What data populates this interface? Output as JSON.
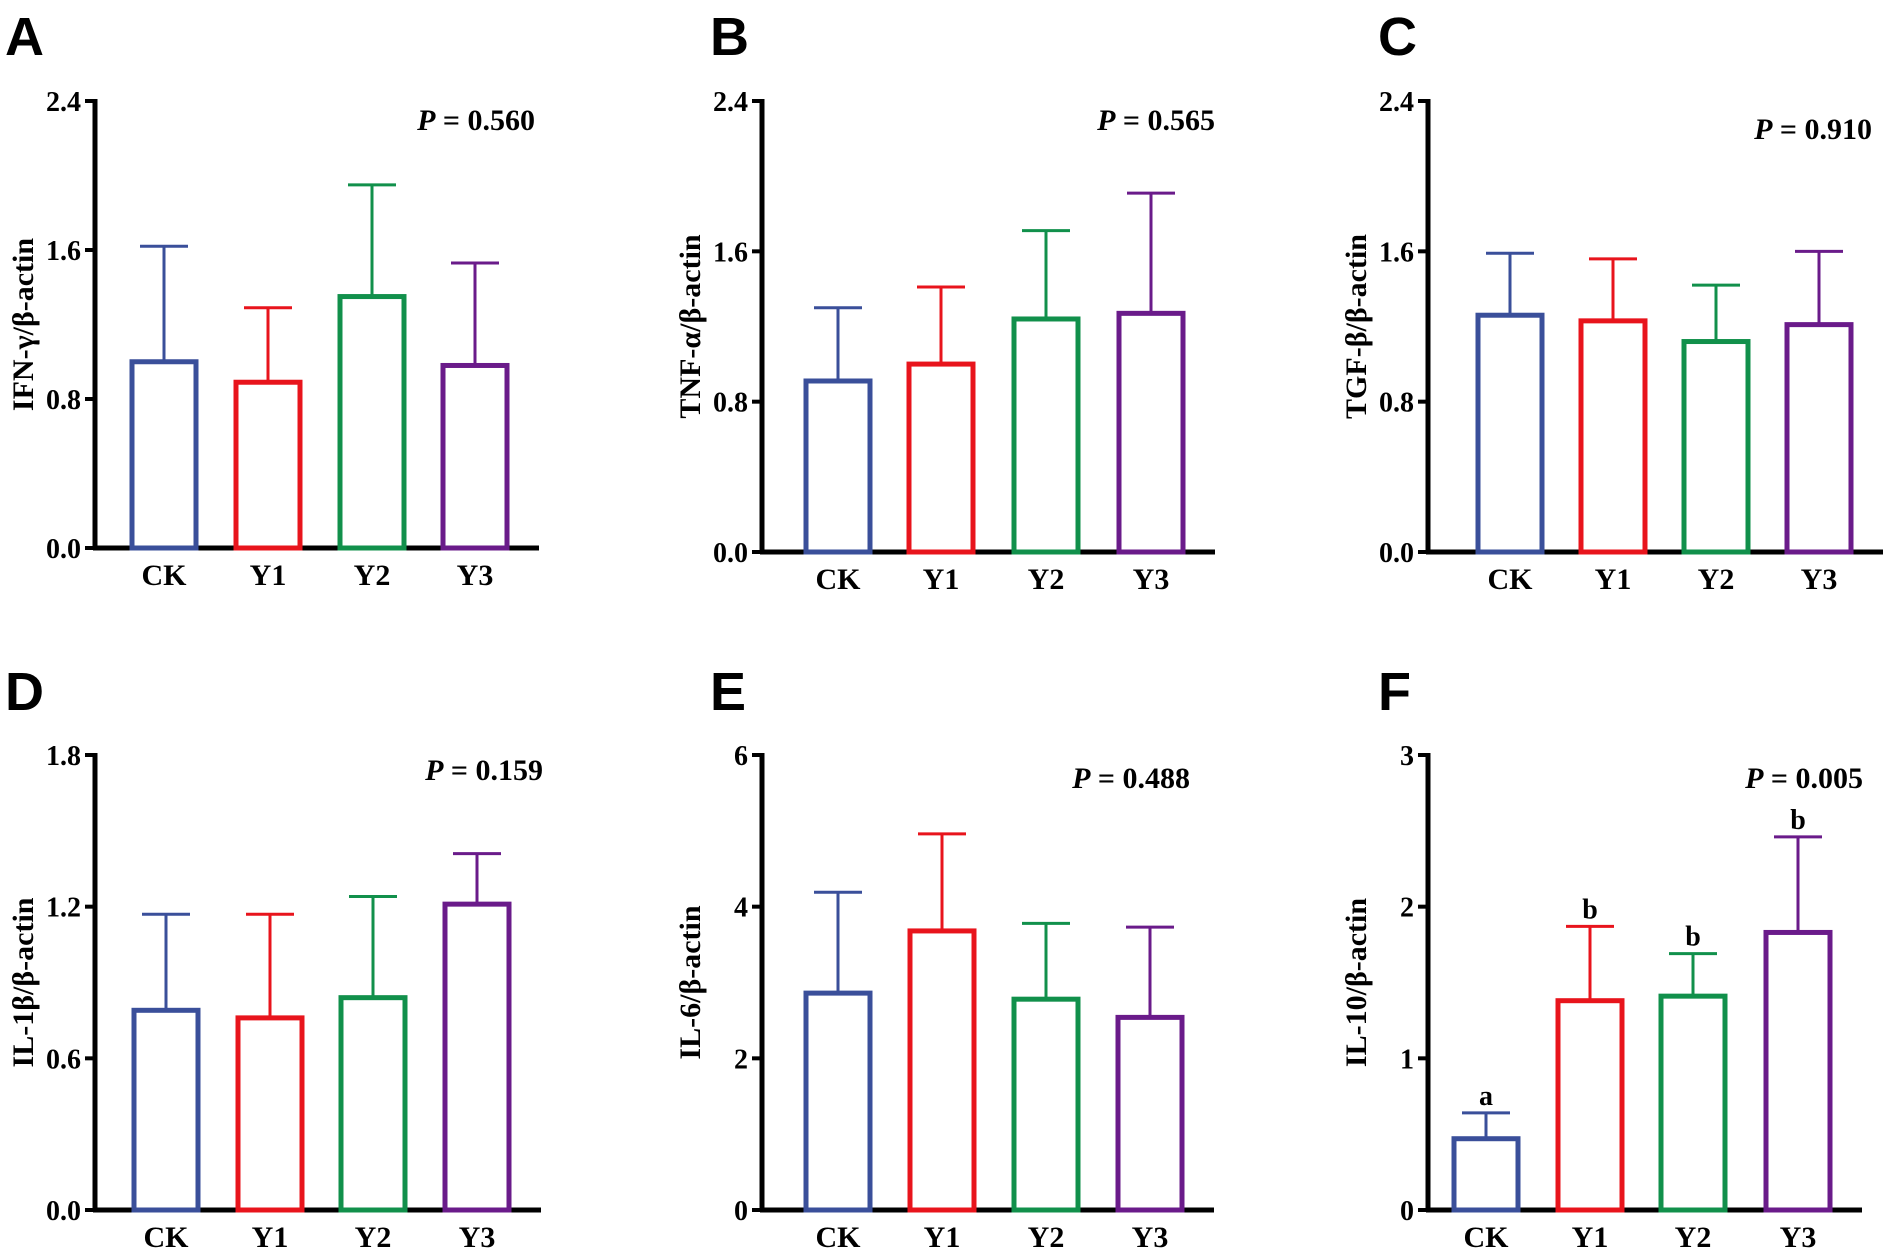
{
  "colors": {
    "CK": "#3a4f9a",
    "Y1": "#e8141c",
    "Y2": "#11904b",
    "Y3": "#6a1b8a",
    "axis": "#000000"
  },
  "chart_data": [
    {
      "type": "bar",
      "panel": "A",
      "ylabel": "IFN-γ/β-actin",
      "categories": [
        "CK",
        "Y1",
        "Y2",
        "Y3"
      ],
      "values": [
        1.0,
        0.89,
        1.35,
        0.98
      ],
      "error_upper": [
        1.62,
        1.29,
        1.95,
        1.53
      ],
      "ylim": [
        0,
        2.4
      ],
      "yticks": [
        "0.0",
        "0.8",
        "1.6",
        "2.4"
      ],
      "p_label": "P",
      "p_value": "= 0.560",
      "letters": []
    },
    {
      "type": "bar",
      "panel": "B",
      "ylabel": "TNF-α/β-actin",
      "categories": [
        "CK",
        "Y1",
        "Y2",
        "Y3"
      ],
      "values": [
        0.91,
        1.0,
        1.24,
        1.27
      ],
      "error_upper": [
        1.3,
        1.41,
        1.71,
        1.91
      ],
      "ylim": [
        0,
        2.4
      ],
      "yticks": [
        "0.0",
        "0.8",
        "1.6",
        "2.4"
      ],
      "p_label": "P",
      "p_value": "= 0.565",
      "letters": []
    },
    {
      "type": "bar",
      "panel": "C",
      "ylabel": "TGF-β/β-actin",
      "categories": [
        "CK",
        "Y1",
        "Y2",
        "Y3"
      ],
      "values": [
        1.26,
        1.23,
        1.12,
        1.21
      ],
      "error_upper": [
        1.59,
        1.56,
        1.42,
        1.6
      ],
      "ylim": [
        0,
        2.4
      ],
      "yticks": [
        "0.0",
        "0.8",
        "1.6",
        "2.4"
      ],
      "p_label": "P",
      "p_value": "= 0.910",
      "letters": []
    },
    {
      "type": "bar",
      "panel": "D",
      "ylabel": "IL-1β/β-actin",
      "categories": [
        "CK",
        "Y1",
        "Y2",
        "Y3"
      ],
      "values": [
        0.79,
        0.76,
        0.84,
        1.21
      ],
      "error_upper": [
        1.17,
        1.17,
        1.24,
        1.41
      ],
      "ylim": [
        0,
        1.8
      ],
      "yticks": [
        "0.0",
        "0.6",
        "1.2",
        "1.8"
      ],
      "p_label": "P",
      "p_value": "= 0.159",
      "letters": []
    },
    {
      "type": "bar",
      "panel": "E",
      "ylabel": "IL-6/β-actin",
      "categories": [
        "CK",
        "Y1",
        "Y2",
        "Y3"
      ],
      "values": [
        2.86,
        3.68,
        2.78,
        2.54
      ],
      "error_upper": [
        4.19,
        4.96,
        3.78,
        3.73
      ],
      "ylim": [
        0,
        6
      ],
      "yticks": [
        "0",
        "2",
        "4",
        "6"
      ],
      "p_label": "P",
      "p_value": "= 0.488",
      "letters": []
    },
    {
      "type": "bar",
      "panel": "F",
      "ylabel": "IL-10/β-actin",
      "categories": [
        "CK",
        "Y1",
        "Y2",
        "Y3"
      ],
      "values": [
        0.47,
        1.38,
        1.41,
        1.83
      ],
      "error_upper": [
        0.64,
        1.87,
        1.69,
        2.46
      ],
      "ylim": [
        0,
        3
      ],
      "yticks": [
        "0",
        "1",
        "2",
        "3"
      ],
      "p_label": "P",
      "p_value": "= 0.005",
      "letters": [
        "a",
        "b",
        "b",
        "b"
      ]
    }
  ]
}
